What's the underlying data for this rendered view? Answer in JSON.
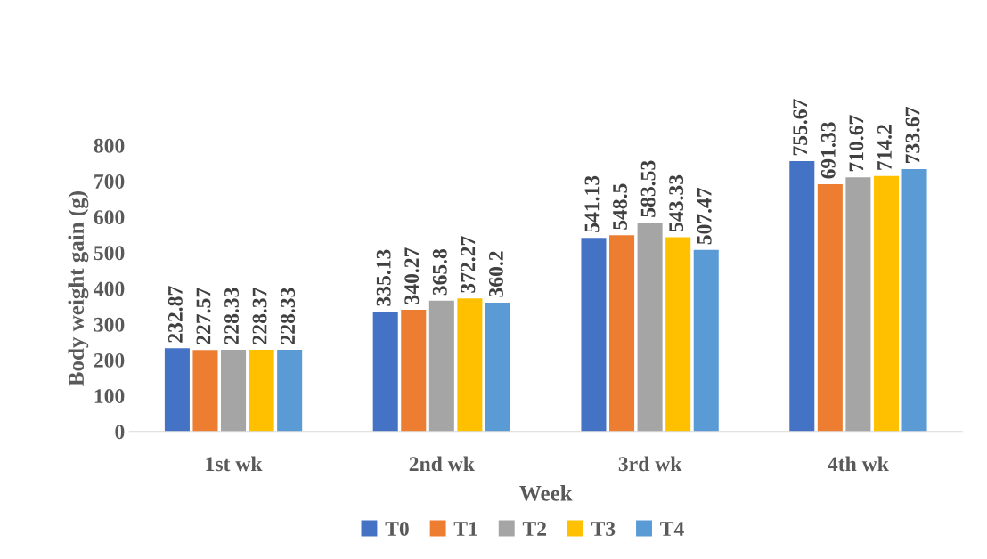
{
  "chart_data": {
    "type": "bar",
    "xlabel": "Week",
    "ylabel": "Body weight gain (g)",
    "categories": [
      "1st wk",
      "2nd wk",
      "3rd wk",
      "4th wk"
    ],
    "series": [
      {
        "name": "T0",
        "color": "#4472c4",
        "values": [
          232.87,
          335.13,
          541.13,
          755.67
        ]
      },
      {
        "name": "T1",
        "color": "#ed7d31",
        "values": [
          227.57,
          340.27,
          548.5,
          691.33
        ]
      },
      {
        "name": "T2",
        "color": "#a5a5a5",
        "values": [
          228.33,
          365.8,
          583.53,
          710.67
        ]
      },
      {
        "name": "T3",
        "color": "#ffc000",
        "values": [
          228.37,
          372.27,
          543.33,
          714.2
        ]
      },
      {
        "name": "T4",
        "color": "#5b9bd5",
        "values": [
          228.33,
          360.2,
          507.47,
          733.67
        ]
      }
    ],
    "ylim": [
      0,
      800
    ],
    "yticks": [
      0,
      100,
      200,
      300,
      400,
      500,
      600,
      700,
      800
    ],
    "data_labels": true,
    "grid": false,
    "legend": "bottom"
  }
}
